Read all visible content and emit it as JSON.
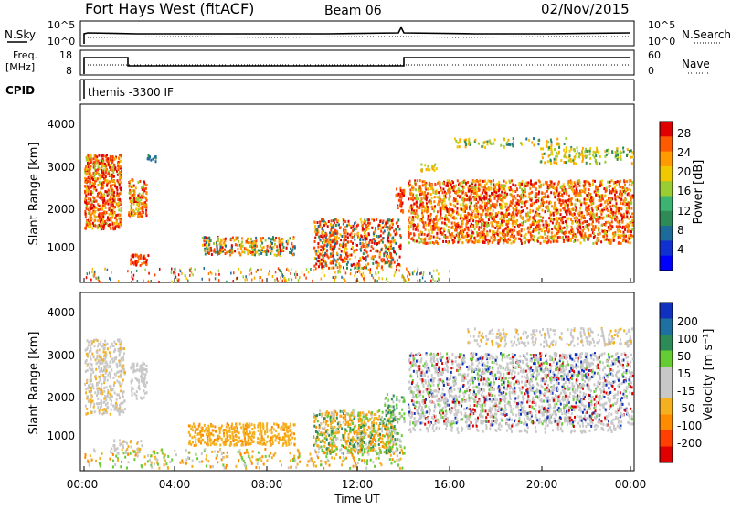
{
  "header": {
    "title": "Fort Hays West (fitACF)",
    "beam": "Beam 06",
    "date": "02/Nov/2015"
  },
  "panels": {
    "noise": {
      "left_label": "N.Sky",
      "left_ticks": [
        "10^5",
        "10^0"
      ],
      "right_ticks": [
        "10^5",
        "10^0"
      ],
      "right_label": "N.Search"
    },
    "freq": {
      "left_label_1": "Freq.",
      "left_label_2": "[MHz]",
      "left_ticks": [
        "18",
        "8"
      ],
      "right_ticks": [
        "60",
        "0"
      ],
      "right_label": "Nave"
    },
    "cpid": {
      "label": "CPID",
      "program": "themis -3300 IF"
    }
  },
  "chart_data": [
    {
      "type": "heatmap",
      "name": "power",
      "ylabel": "Slant Range [km]",
      "yticks": [
        "4000",
        "3000",
        "2000",
        "1000"
      ],
      "colorbar_label": "Power [dB]",
      "colorbar_ticks": [
        "28",
        "24",
        "20",
        "16",
        "12",
        "8",
        "4"
      ],
      "colorbar_colors": [
        "#e00000",
        "#ff5a00",
        "#ff9a00",
        "#f0c800",
        "#9acd32",
        "#3cb371",
        "#2e8b57",
        "#1e6a9a",
        "#1030d0",
        "#0000ff"
      ]
    },
    {
      "type": "heatmap",
      "name": "velocity",
      "ylabel": "Slant Range [km]",
      "yticks": [
        "4000",
        "3000",
        "2000",
        "1000"
      ],
      "colorbar_label": "Velocity [m s⁻¹]",
      "colorbar_ticks": [
        "200",
        "100",
        "50",
        "15",
        "-15",
        "-50",
        "-100",
        "-200"
      ],
      "colorbar_colors": [
        "#1030c0",
        "#1e70a0",
        "#2e8b57",
        "#66cc33",
        "#c8c8c8",
        "#c8c8c8",
        "#f5b020",
        "#ff8c00",
        "#ff4000",
        "#e00000"
      ]
    }
  ],
  "xaxis": {
    "ticks": [
      "00:00",
      "04:00",
      "08:00",
      "12:00",
      "16:00",
      "20:00",
      "00:00"
    ],
    "label": "Time UT"
  },
  "colors": {
    "grid": "#000000",
    "background": "#ffffff",
    "ground_gray": "#c8c8c8"
  }
}
